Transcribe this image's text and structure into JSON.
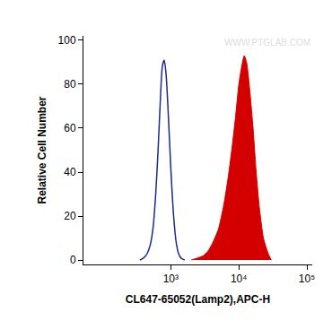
{
  "chart_data": {
    "type": "line",
    "x_label": "CL647-65052(Lamp2),APC-H",
    "y_label": "Relative Cell Number",
    "log": "x",
    "xlim": [
      52,
      120000
    ],
    "xticks": [
      {
        "value": 1000,
        "label": "10³"
      },
      {
        "value": 10000,
        "label": "10⁴"
      },
      {
        "value": 100000,
        "label": "10⁵"
      }
    ],
    "ylim": [
      -2,
      102
    ],
    "yticks": [
      0,
      20,
      40,
      60,
      80,
      100
    ],
    "grid": false,
    "annotations": [
      {
        "text": "WWW.PTGLAB.COM"
      }
    ],
    "series": [
      {
        "type": "line",
        "color": "#1c2a8c",
        "x": [
          350,
          400,
          450,
          500,
          550,
          600,
          650,
          700,
          750,
          800,
          850,
          900,
          1000,
          1100,
          1200,
          1300,
          1400,
          1600
        ],
        "values": [
          0,
          1,
          3,
          7,
          15,
          30,
          50,
          72,
          88,
          91,
          85,
          72,
          42,
          20,
          8,
          3,
          1,
          0
        ]
      },
      {
        "type": "area",
        "color": "#d40000",
        "x": [
          2000,
          2500,
          3000,
          3500,
          4000,
          5000,
          6000,
          7000,
          8000,
          9000,
          10000,
          11000,
          12000,
          13000,
          14000,
          16000,
          18000,
          20000,
          23000,
          27000,
          30000
        ],
        "values": [
          0,
          1,
          2,
          4,
          7,
          14,
          25,
          38,
          52,
          66,
          80,
          88,
          93,
          90,
          82,
          62,
          40,
          24,
          10,
          3,
          0
        ]
      }
    ]
  }
}
